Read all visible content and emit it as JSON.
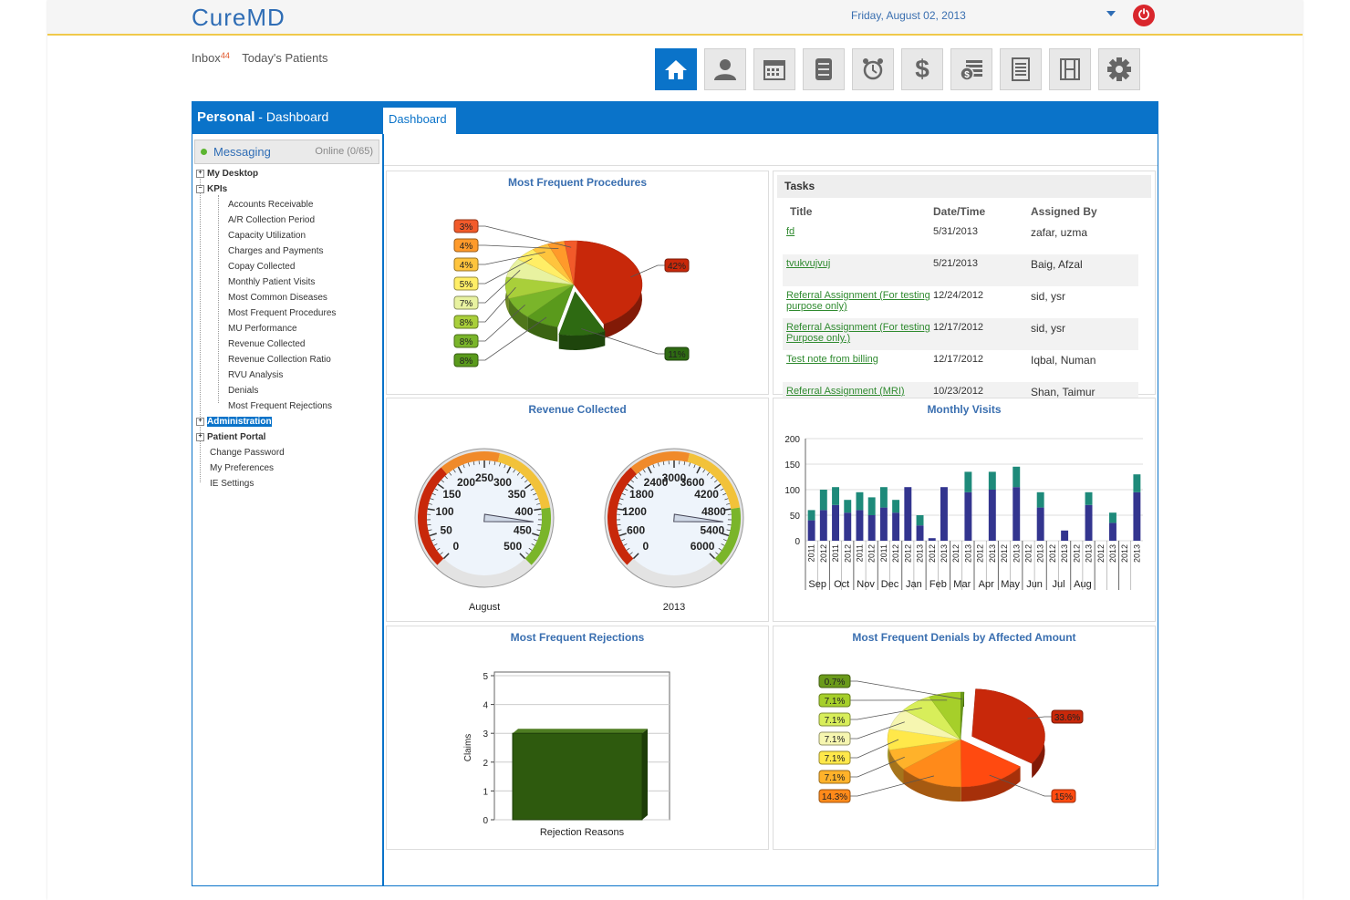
{
  "app": {
    "logo": "CureMD",
    "date": "Friday, August 02, 2013"
  },
  "nav": {
    "inbox_label": "Inbox",
    "inbox_count": "44",
    "todays_patients": "Today's Patients"
  },
  "panel": {
    "title_bold": "Personal",
    "title_rest": " - Dashboard",
    "tab": "Dashboard"
  },
  "messaging": {
    "label": "Messaging",
    "online": "Online (0/65)"
  },
  "tree": {
    "my_desktop": "My Desktop",
    "kpis": "KPIs",
    "kpi_items": [
      "Accounts Receivable",
      "A/R Collection Period",
      "Capacity Utilization",
      "Charges and Payments",
      "Copay Collected",
      "Monthly Patient Visits",
      "Most Common Diseases",
      "Most Frequent Procedures",
      "MU Performance",
      "Revenue Collected",
      "Revenue Collection Ratio",
      "RVU Analysis",
      "Denials",
      "Most Frequent Rejections"
    ],
    "administration": "Administration",
    "patient_portal": "Patient Portal",
    "change_password": "Change Password",
    "my_preferences": "My Preferences",
    "ie_settings": "IE Settings"
  },
  "cards": {
    "procedures_title": "Most Frequent Procedures",
    "revenue_title": "Revenue Collected",
    "visits_title": "Monthly Visits",
    "rejections_title": "Most Frequent Rejections",
    "denials_title": "Most Frequent Denials by Affected Amount"
  },
  "tasks": {
    "heading": "Tasks",
    "columns": [
      "Title",
      "Date/Time",
      "Assigned By"
    ],
    "rows": [
      {
        "title": "fd",
        "date": "5/31/2013",
        "by": "zafar, uzma"
      },
      {
        "title": "tvukvujvuj",
        "date": "5/21/2013",
        "by": "Baig, Afzal"
      },
      {
        "title": "Referral Assignment (For testing purpose only)",
        "date": "12/24/2012",
        "by": "sid, ysr"
      },
      {
        "title": "Referral Assignment (For testing Purpose only.)",
        "date": "12/17/2012",
        "by": "sid, ysr"
      },
      {
        "title": "Test note from billing",
        "date": "12/17/2012",
        "by": "Iqbal, Numan"
      },
      {
        "title": "Referral Assignment (MRI)",
        "date": "10/23/2012",
        "by": "Shan, Taimur"
      }
    ]
  },
  "chart_data": [
    {
      "type": "pie",
      "title": "Most Frequent Procedures",
      "labels": [
        "42%",
        "11%",
        "8%",
        "8%",
        "8%",
        "7%",
        "5%",
        "4%",
        "4%",
        "3%"
      ],
      "values": [
        42,
        11,
        8,
        8,
        8,
        7,
        5,
        4,
        4,
        3
      ],
      "colors": [
        "#c8280a",
        "#2e6a12",
        "#5a9a1c",
        "#7ab52a",
        "#a9cf3a",
        "#e8f2a0",
        "#ffee66",
        "#ffc43d",
        "#ff9a2a",
        "#f25a2a"
      ]
    },
    {
      "type": "gauge",
      "title": "Revenue Collected",
      "gauges": [
        {
          "label": "August",
          "ticks": [
            "0",
            "50",
            "100",
            "150",
            "200",
            "250",
            "300",
            "350",
            "400",
            "450",
            "500"
          ],
          "max": 500,
          "value": 425
        },
        {
          "label": "2013",
          "ticks": [
            "0",
            "600",
            "1200",
            "1800",
            "2400",
            "3000",
            "3600",
            "4200",
            "4800",
            "5400",
            "6000"
          ],
          "max": 6000,
          "value": 5100
        }
      ]
    },
    {
      "type": "bar",
      "title": "Monthly Visits",
      "stacked": true,
      "ylim": [
        0,
        200
      ],
      "yticks": [
        "0",
        "50",
        "100",
        "150",
        "200"
      ],
      "categories": [
        "2011",
        "2012",
        "2011",
        "2012",
        "2011",
        "2012",
        "2011",
        "2012",
        "2012",
        "2013",
        "2012",
        "2013",
        "2012",
        "2013",
        "2012",
        "2013",
        "2012",
        "2013",
        "2012",
        "2013",
        "2012",
        "2013",
        "2012",
        "2013",
        "2012",
        "2013",
        "2012",
        "2013"
      ],
      "months": [
        "Sep",
        "Oct",
        "Nov",
        "Dec",
        "Jan",
        "Feb",
        "Mar",
        "Apr",
        "May",
        "Jun",
        "Jul",
        "Aug"
      ],
      "series": [
        {
          "values": [
            40,
            60,
            70,
            55,
            60,
            50,
            65,
            55,
            105,
            30,
            5,
            105,
            0,
            95,
            0,
            100,
            0,
            105,
            0,
            65,
            0,
            20,
            0,
            70,
            0,
            35,
            0,
            95
          ]
        },
        {
          "values": [
            20,
            40,
            35,
            25,
            35,
            35,
            40,
            25,
            0,
            20,
            0,
            0,
            0,
            40,
            0,
            35,
            0,
            40,
            0,
            30,
            0,
            0,
            0,
            25,
            0,
            20,
            0,
            35
          ]
        }
      ],
      "colors": [
        "#33358f",
        "#1e8a7a"
      ]
    },
    {
      "type": "bar",
      "title": "Most Frequent Rejections",
      "categories": [
        "Rejection Reasons"
      ],
      "values": [
        3
      ],
      "xlabel": "Rejection Reasons",
      "ylabel": "Claims",
      "ylim": [
        0,
        5
      ],
      "yticks": [
        "0",
        "1",
        "2",
        "3",
        "4",
        "5"
      ],
      "colors": [
        "#2e5a0e"
      ]
    },
    {
      "type": "pie",
      "title": "Most Frequent Denials by Affected Amount",
      "labels": [
        "33.6%",
        "15%",
        "14.3%",
        "7.1%",
        "7.1%",
        "7.1%",
        "7.1%",
        "7.1%",
        "0.7%"
      ],
      "values": [
        33.6,
        15,
        14.3,
        7.1,
        7.1,
        7.1,
        7.1,
        7.1,
        0.7
      ],
      "colors": [
        "#c8280a",
        "#ff4a10",
        "#ff8a1a",
        "#ffb22a",
        "#ffe84a",
        "#f6f6b0",
        "#d8ee5a",
        "#a6cf2a",
        "#6a9a1a"
      ]
    }
  ]
}
